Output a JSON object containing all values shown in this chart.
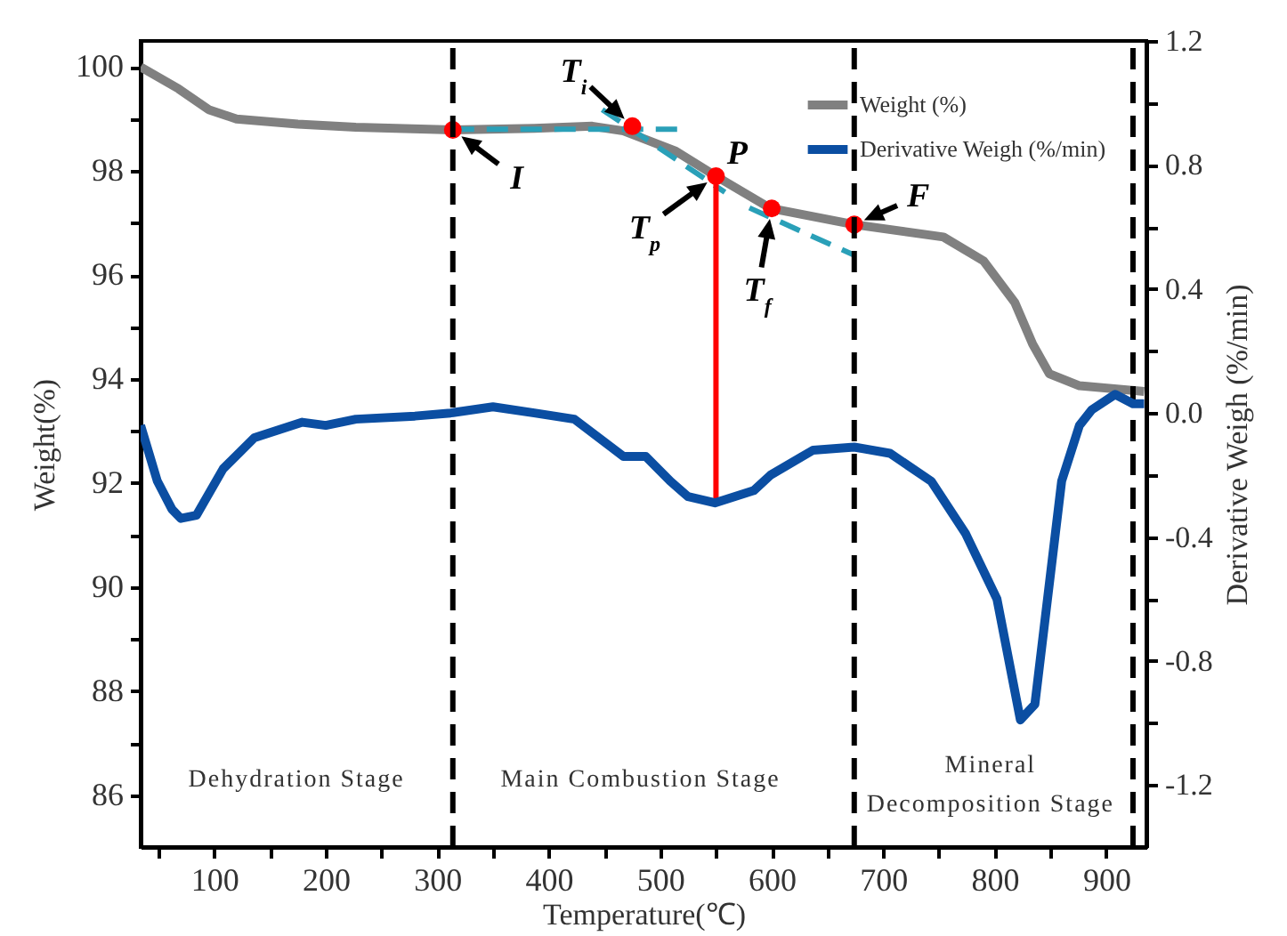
{
  "chart_data": {
    "type": "line",
    "xlabel": "Temperature(℃)",
    "ylabel": "Weight(%)",
    "y2label": "Derivative Weigh (%/min)",
    "xlim": [
      34,
      936
    ],
    "xticks": [
      {
        "value": 50,
        "label": null
      },
      100,
      {
        "value": 150,
        "label": null
      },
      200,
      {
        "value": 250,
        "label": null
      },
      300,
      {
        "value": 350,
        "label": null
      },
      400,
      {
        "value": 450,
        "label": null
      },
      500,
      {
        "value": 550,
        "label": null
      },
      600,
      {
        "value": 650,
        "label": null
      },
      700,
      {
        "value": 750,
        "label": null
      },
      800,
      {
        "value": 850,
        "label": null
      },
      900
    ],
    "ylim": [
      85,
      100.5
    ],
    "yticks": [
      86,
      {
        "value": 87,
        "label": null
      },
      88,
      {
        "value": 89,
        "label": null
      },
      90,
      {
        "value": 91,
        "label": null
      },
      92,
      {
        "value": 93,
        "label": null
      },
      94,
      {
        "value": 95,
        "label": null
      },
      96,
      {
        "value": 97,
        "label": null
      },
      98,
      {
        "value": 99,
        "label": null
      },
      100
    ],
    "y2lim": [
      -1.4,
      1.2
    ],
    "y2ticks": [
      -1.2,
      {
        "value": -1.0,
        "label": null
      },
      -0.8,
      {
        "value": -0.6,
        "label": null
      },
      -0.4,
      {
        "value": -0.2,
        "label": null
      },
      {
        "value": 0,
        "label": "0.0"
      },
      {
        "value": 0.2,
        "label": null
      },
      0.4,
      {
        "value": 0.6,
        "label": null
      },
      0.8,
      {
        "value": 1.0,
        "label": null
      },
      1.2
    ],
    "legend": "top right",
    "series": [
      {
        "name": "Weight (%)",
        "color": "#808080",
        "x": [
          34,
          68,
          95,
          120,
          175,
          227,
          314,
          387,
          439,
          467,
          514,
          550,
          599,
          674,
          754,
          790,
          818,
          834,
          849,
          876,
          934
        ],
        "values": [
          100,
          99.58,
          99.18,
          99.0,
          98.9,
          98.84,
          98.79,
          98.82,
          98.86,
          98.77,
          98.38,
          97.9,
          97.28,
          96.97,
          96.73,
          96.27,
          95.47,
          94.67,
          94.1,
          93.87,
          93.76
        ]
      },
      {
        "name": "Derivative Weigh (%/min)",
        "color": "#0b4ea2",
        "axis": "y2",
        "x": [
          34,
          49,
          62,
          70,
          84,
          108,
          136,
          179,
          200,
          227,
          280,
          312,
          350,
          387,
          423,
          467,
          487,
          509,
          525,
          549,
          584,
          599,
          637,
          674,
          706,
          743,
          774,
          802,
          823,
          836,
          860,
          876,
          887,
          908,
          924,
          934
        ],
        "values": [
          -0.04,
          -0.22,
          -0.31,
          -0.34,
          -0.33,
          -0.18,
          -0.08,
          -0.03,
          -0.04,
          -0.02,
          -0.01,
          0.0,
          0.02,
          0.0,
          -0.02,
          -0.14,
          -0.14,
          -0.22,
          -0.27,
          -0.29,
          -0.25,
          -0.2,
          -0.12,
          -0.11,
          -0.13,
          -0.22,
          -0.39,
          -0.6,
          -0.99,
          -0.94,
          -0.22,
          -0.04,
          0.01,
          0.06,
          0.03,
          0.03
        ]
      },
      {
        "type": "line",
        "color": "#2aa0b8",
        "line_style": "dashed",
        "x": [
          314,
          519
        ],
        "values": [
          98.8,
          98.8
        ]
      },
      {
        "type": "line",
        "color": "#2aa0b8",
        "line_style": "dashed",
        "x": [
          448,
          558
        ],
        "values": [
          99.18,
          97.59
        ]
      },
      {
        "type": "line",
        "color": "#2aa0b8",
        "line_style": "dashed",
        "x": [
          580,
          674
        ],
        "values": [
          97.29,
          96.38
        ]
      },
      {
        "type": "line",
        "color": "#ff0000",
        "x": [
          550,
          550
        ],
        "values": [
          97.9,
          91.6
        ]
      },
      {
        "type": "scatter",
        "color": "#ff0000",
        "marker": "circle",
        "x": [
          314,
          475,
          550,
          600,
          674
        ],
        "values": [
          98.79,
          98.86,
          97.9,
          97.28,
          96.97
        ]
      }
    ],
    "ref_lines": [
      {
        "axis": "x",
        "value": 314,
        "color": "#000000",
        "line_style": "dashed"
      },
      {
        "axis": "x",
        "value": 674,
        "color": "#000000",
        "line_style": "dashed"
      },
      {
        "axis": "x",
        "value": 924,
        "color": "#000000",
        "line_style": "dashed"
      }
    ],
    "annotations": [
      {
        "text": "I",
        "x": 314,
        "y": 98.79
      },
      {
        "text": "T$_{i}$",
        "x": 475,
        "y": 98.86
      },
      {
        "text": "P",
        "x": 550,
        "y": 97.9
      },
      {
        "text": "T$_{p}$",
        "x": 550,
        "y": 97.9
      },
      {
        "text": "T$_{f}$",
        "x": 600,
        "y": 97.28
      },
      {
        "text": "F",
        "x": 674,
        "y": 96.97
      },
      "Dehydration Stage",
      "Main Combustion Stage",
      "Mineral\nDecomposition Stage"
    ]
  }
}
